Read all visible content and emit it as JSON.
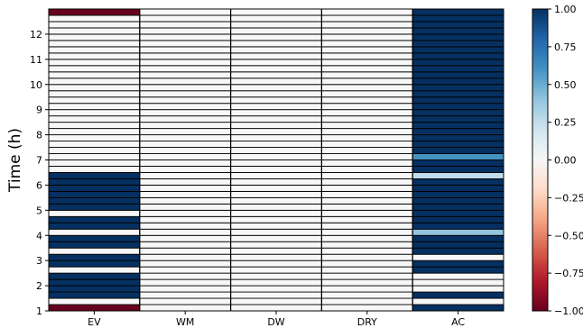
{
  "chart_data": {
    "type": "heatmap",
    "title": "",
    "xlabel": "",
    "ylabel": "Time (h)",
    "columns": [
      "EV",
      "WM",
      "DW",
      "DRY",
      "AC"
    ],
    "y_ticks": [
      1,
      2,
      3,
      4,
      5,
      6,
      7,
      8,
      9,
      10,
      11,
      12
    ],
    "ylim": [
      1,
      13
    ],
    "rows_per_hour": 4,
    "row_start_hour": 1,
    "colorbar": {
      "min": -1.0,
      "max": 1.0,
      "ticks": [
        -1.0,
        -0.75,
        -0.5,
        -0.25,
        0.0,
        0.25,
        0.5,
        0.75,
        1.0
      ],
      "tick_labels": [
        "−1.00",
        "−0.75",
        "−0.50",
        "−0.25",
        "0.00",
        "0.25",
        "0.50",
        "0.75",
        "1.00"
      ],
      "colormap": "RdBu"
    },
    "values": {
      "EV": [
        -1,
        0,
        1,
        1,
        1,
        1,
        0,
        1,
        1,
        0,
        1,
        1,
        0,
        1,
        1,
        0,
        1,
        1,
        1,
        1,
        1,
        1,
        0,
        0,
        0,
        0,
        0,
        0,
        0,
        0,
        0,
        0,
        0,
        0,
        0,
        0,
        0,
        0,
        0,
        0,
        0,
        0,
        0,
        0,
        0,
        0,
        0,
        -1
      ],
      "WM": [
        0,
        0,
        0,
        0,
        0,
        0,
        0,
        0,
        0,
        0,
        0,
        0,
        0,
        0,
        0,
        0,
        0,
        0,
        0,
        0,
        0,
        0,
        0,
        0,
        0,
        0,
        0,
        0,
        0,
        0,
        0,
        0,
        0,
        0,
        0,
        0,
        0,
        0,
        0,
        0,
        0,
        0,
        0,
        0,
        0,
        0,
        0,
        0
      ],
      "DW": [
        0,
        0,
        0,
        0,
        0,
        0,
        0,
        0,
        0,
        0,
        0,
        0,
        0,
        0,
        0,
        0,
        0,
        0,
        0,
        0,
        0,
        0,
        0,
        0,
        0,
        0,
        0,
        0,
        0,
        0,
        0,
        0,
        0,
        0,
        0,
        0,
        0,
        0,
        0,
        0,
        0,
        0,
        0,
        0,
        0,
        0,
        0,
        0
      ],
      "DRY": [
        0,
        0,
        0,
        0,
        0,
        0,
        0,
        0,
        0,
        0,
        0,
        0,
        0,
        0,
        0,
        0,
        0,
        0,
        0,
        0,
        0,
        0,
        0,
        0,
        0,
        0,
        0,
        0,
        0,
        0,
        0,
        0,
        0,
        0,
        0,
        0,
        0,
        0,
        0,
        0,
        0,
        0,
        0,
        0,
        0,
        0,
        0,
        0
      ],
      "AC": [
        1,
        0,
        1,
        0,
        0,
        0,
        1,
        1,
        0,
        1,
        1,
        1,
        0.4,
        1,
        1,
        1,
        1,
        1,
        1,
        1,
        1,
        0.25,
        1,
        1,
        0.6,
        1,
        1,
        1,
        1,
        1,
        1,
        1,
        1,
        1,
        1,
        1,
        1,
        1,
        1,
        1,
        1,
        1,
        1,
        1,
        1,
        1,
        1,
        1
      ]
    }
  }
}
